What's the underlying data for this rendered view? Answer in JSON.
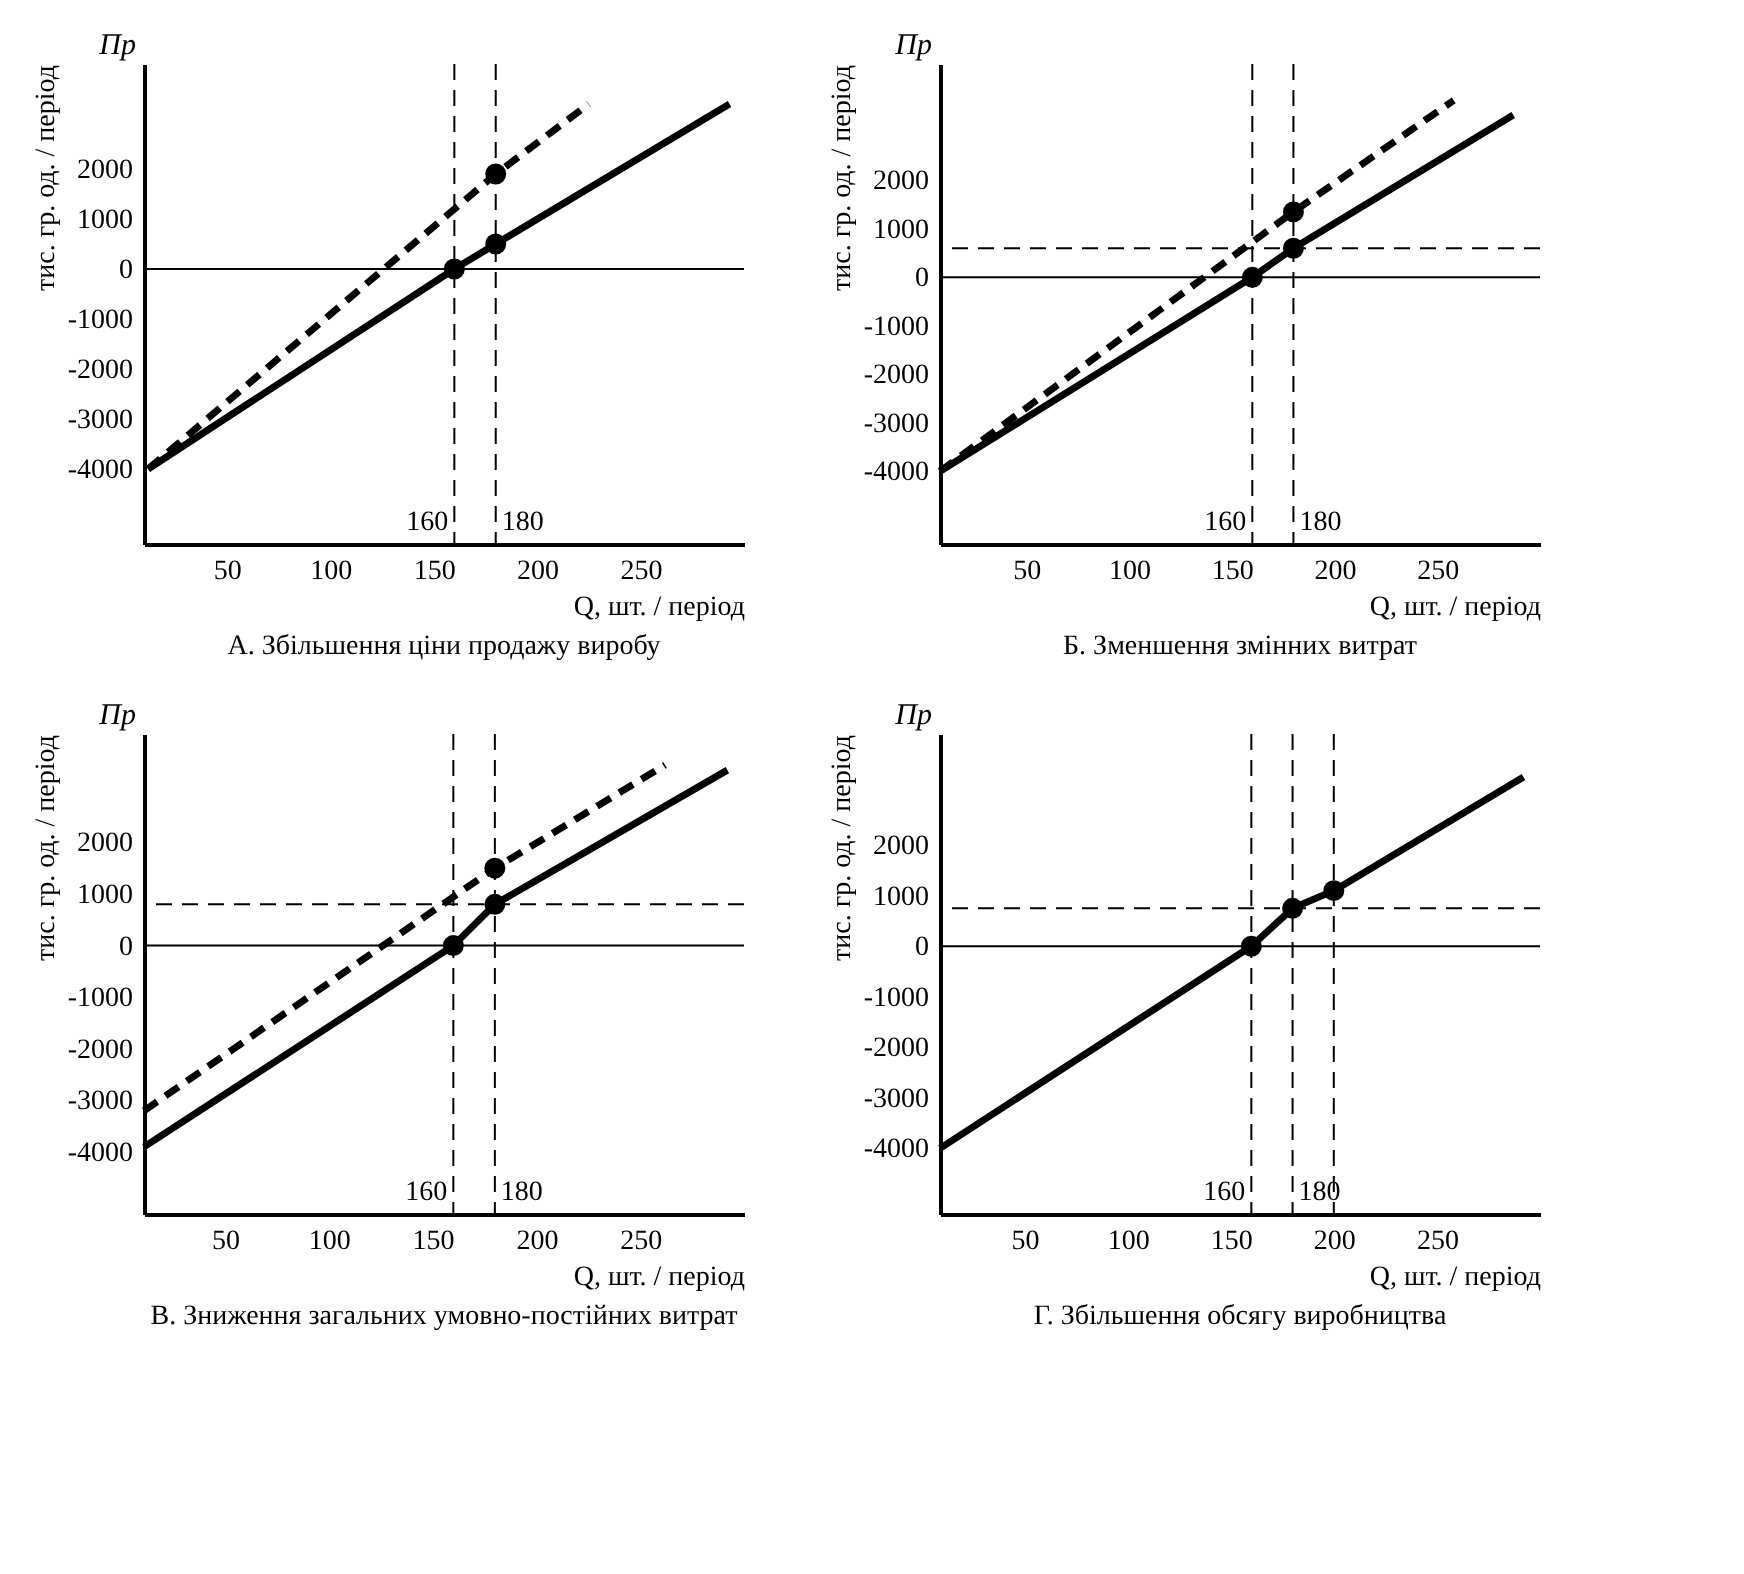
{
  "chart_data": [
    {
      "type": "line",
      "title": "А. Збільшення ціни продажу виробу",
      "xlabel": "Q, шт. / період",
      "ylabel": "тис. гр. од. / період",
      "annotations": [
        "Пр"
      ],
      "xlim": [
        10,
        300
      ],
      "ylim": [
        -5500,
        4100
      ],
      "xticks": [
        50,
        100,
        150,
        200,
        250
      ],
      "yticks": [
        -4000,
        -3000,
        -2000,
        -1000,
        0,
        1000,
        2000
      ],
      "grid": false,
      "series": [
        {
          "color": "#000000",
          "line_style": "solid",
          "x": [
            12,
            160,
            180,
            293
          ],
          "values": [
            -4000,
            0,
            500,
            3300
          ]
        },
        {
          "color": "#000000",
          "line_style": "dashed",
          "x": [
            12,
            180,
            225
          ],
          "values": [
            -4000,
            1900,
            3300
          ]
        },
        {
          "type": "scatter",
          "marker": "circle",
          "color": "#000000",
          "x": [
            160,
            180,
            180
          ],
          "values": [
            0,
            500,
            1900
          ]
        }
      ],
      "ref_lines": [
        {
          "axis": "y",
          "value": 0,
          "line_style": "solid"
        },
        {
          "axis": "x",
          "value": 160,
          "label": "160",
          "line_style": "dashed"
        },
        {
          "axis": "x",
          "value": 180,
          "label": "180",
          "line_style": "dashed"
        }
      ]
    },
    {
      "type": "line",
      "title": "Б. Зменшення змінних витрат",
      "xlabel": "Q, шт. / період",
      "ylabel": "тис. гр. од. / період",
      "annotations": [
        "Пр"
      ],
      "xlim": [
        8,
        300
      ],
      "ylim": [
        -5500,
        4400
      ],
      "xticks": [
        50,
        100,
        150,
        200,
        250
      ],
      "yticks": [
        -4000,
        -3000,
        -2000,
        -1000,
        0,
        1000,
        2000
      ],
      "grid": false,
      "series": [
        {
          "color": "#000000",
          "line_style": "solid",
          "x": [
            8,
            160,
            180,
            287
          ],
          "values": [
            -4000,
            0,
            600,
            3350
          ]
        },
        {
          "color": "#000000",
          "line_style": "dashed",
          "x": [
            8,
            180,
            258
          ],
          "values": [
            -4000,
            1350,
            3650
          ]
        },
        {
          "type": "scatter",
          "marker": "circle",
          "color": "#000000",
          "x": [
            160,
            180,
            180
          ],
          "values": [
            0,
            600,
            1350
          ]
        }
      ],
      "ref_lines": [
        {
          "axis": "y",
          "value": 0,
          "line_style": "solid"
        },
        {
          "axis": "y",
          "value": 600,
          "line_style": "dashed"
        },
        {
          "axis": "x",
          "value": 160,
          "label": "160",
          "line_style": "dashed"
        },
        {
          "axis": "x",
          "value": 180,
          "label": "180",
          "line_style": "dashed"
        }
      ]
    },
    {
      "type": "line",
      "title": "В. Зниження загальних умовно-постійних витрат",
      "xlabel": "Q, шт. / період",
      "ylabel": "тис. гр. од. / період",
      "annotations": [
        "Пр"
      ],
      "xlim": [
        11,
        300
      ],
      "ylim": [
        -5200,
        4100
      ],
      "xticks": [
        50,
        100,
        150,
        200,
        250
      ],
      "yticks": [
        -4000,
        -3000,
        -2000,
        -1000,
        0,
        1000,
        2000
      ],
      "grid": false,
      "series": [
        {
          "color": "#000000",
          "line_style": "solid",
          "x": [
            11,
            160,
            180,
            292
          ],
          "values": [
            -3900,
            0,
            800,
            3400
          ]
        },
        {
          "color": "#000000",
          "line_style": "dashed",
          "x": [
            11,
            180,
            262
          ],
          "values": [
            -3200,
            1500,
            3500
          ]
        },
        {
          "type": "scatter",
          "marker": "circle",
          "color": "#000000",
          "x": [
            160,
            180,
            180
          ],
          "values": [
            0,
            800,
            1500
          ]
        }
      ],
      "ref_lines": [
        {
          "axis": "y",
          "value": 0,
          "line_style": "solid"
        },
        {
          "axis": "y",
          "value": 800,
          "line_style": "dashed"
        },
        {
          "axis": "x",
          "value": 160,
          "label": "160",
          "line_style": "dashed"
        },
        {
          "axis": "x",
          "value": 180,
          "label": "180",
          "line_style": "dashed"
        }
      ]
    },
    {
      "type": "line",
      "title": "Г. Збільшення обсягу виробництва",
      "xlabel": "Q, шт. / період",
      "ylabel": "тис. гр. од. / період",
      "annotations": [
        "Пр"
      ],
      "xlim": [
        9,
        300
      ],
      "ylim": [
        -5300,
        4200
      ],
      "xticks": [
        50,
        100,
        150,
        200,
        250
      ],
      "yticks": [
        -4000,
        -3000,
        -2000,
        -1000,
        0,
        1000,
        2000
      ],
      "grid": false,
      "series": [
        {
          "color": "#000000",
          "line_style": "solid",
          "x": [
            9,
            160,
            180,
            200,
            292
          ],
          "values": [
            -4000,
            0,
            750,
            1100,
            3350
          ]
        },
        {
          "type": "scatter",
          "marker": "circle",
          "color": "#000000",
          "x": [
            160,
            180,
            200
          ],
          "values": [
            0,
            750,
            1100
          ]
        }
      ],
      "ref_lines": [
        {
          "axis": "y",
          "value": 0,
          "line_style": "solid"
        },
        {
          "axis": "y",
          "value": 750,
          "line_style": "dashed"
        },
        {
          "axis": "x",
          "value": 160,
          "label": "160",
          "line_style": "dashed"
        },
        {
          "axis": "x",
          "value": 180,
          "label": "180",
          "line_style": "dashed"
        },
        {
          "axis": "x",
          "value": 200,
          "line_style": "dashed"
        }
      ]
    }
  ]
}
